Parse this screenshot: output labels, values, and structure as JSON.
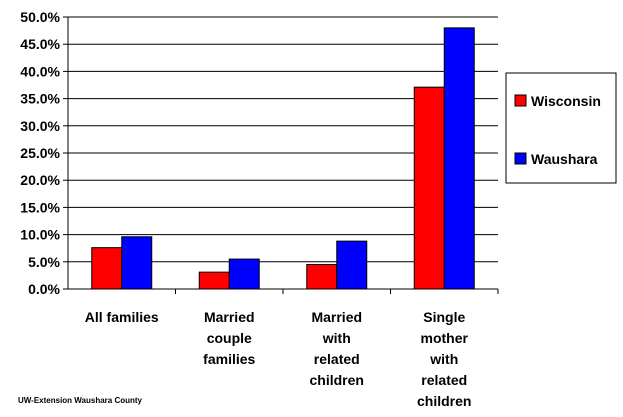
{
  "chart_data": {
    "type": "bar",
    "categories": [
      [
        "All families"
      ],
      [
        "Married",
        "couple",
        "families"
      ],
      [
        "Married",
        "with",
        "related",
        "children"
      ],
      [
        "Single",
        "mother",
        "with",
        "related",
        "children"
      ]
    ],
    "series": [
      {
        "name": "Wisconsin",
        "color": "#ff0000",
        "values": [
          7.6,
          3.1,
          4.5,
          37.1
        ]
      },
      {
        "name": "Waushara",
        "color": "#0000ff",
        "values": [
          9.6,
          5.5,
          8.8,
          48.0
        ]
      }
    ],
    "ylim": [
      0,
      50
    ],
    "yticks": [
      "0.0%",
      "5.0%",
      "10.0%",
      "15.0%",
      "20.0%",
      "25.0%",
      "30.0%",
      "35.0%",
      "40.0%",
      "45.0%",
      "50.0%"
    ],
    "grid": true,
    "legend": "right"
  },
  "footnote": "UW-Extension Waushara County"
}
